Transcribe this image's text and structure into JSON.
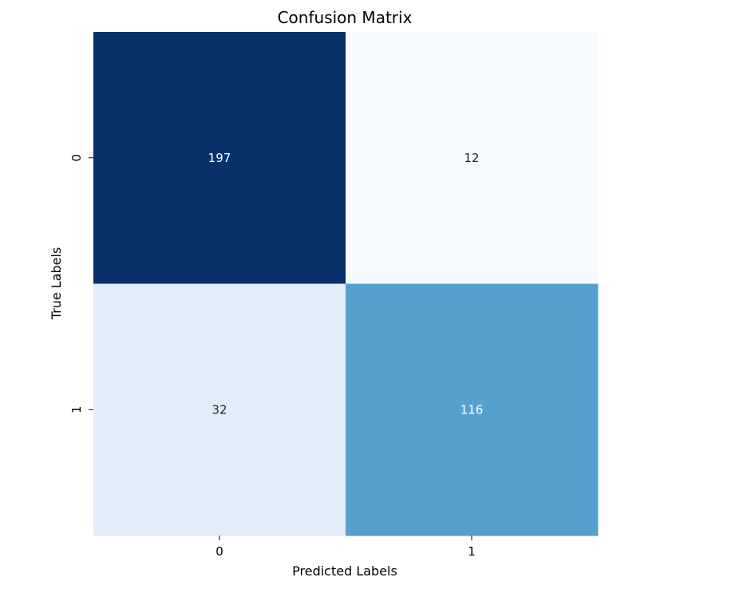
{
  "chart_data": {
    "type": "heatmap",
    "title": "Confusion Matrix",
    "xlabel": "Predicted Labels",
    "ylabel": "True Labels",
    "x_categories": [
      "0",
      "1"
    ],
    "y_categories": [
      "0",
      "1"
    ],
    "values": [
      [
        197,
        12
      ],
      [
        32,
        116
      ]
    ],
    "colormap": "Blues",
    "value_range": [
      12,
      197
    ],
    "colors": {
      "low": "#f7fbff",
      "high": "#08306b",
      "text_dark": "#262626",
      "text_light": "#ffffff"
    },
    "colorbar": false,
    "annotations": true
  }
}
